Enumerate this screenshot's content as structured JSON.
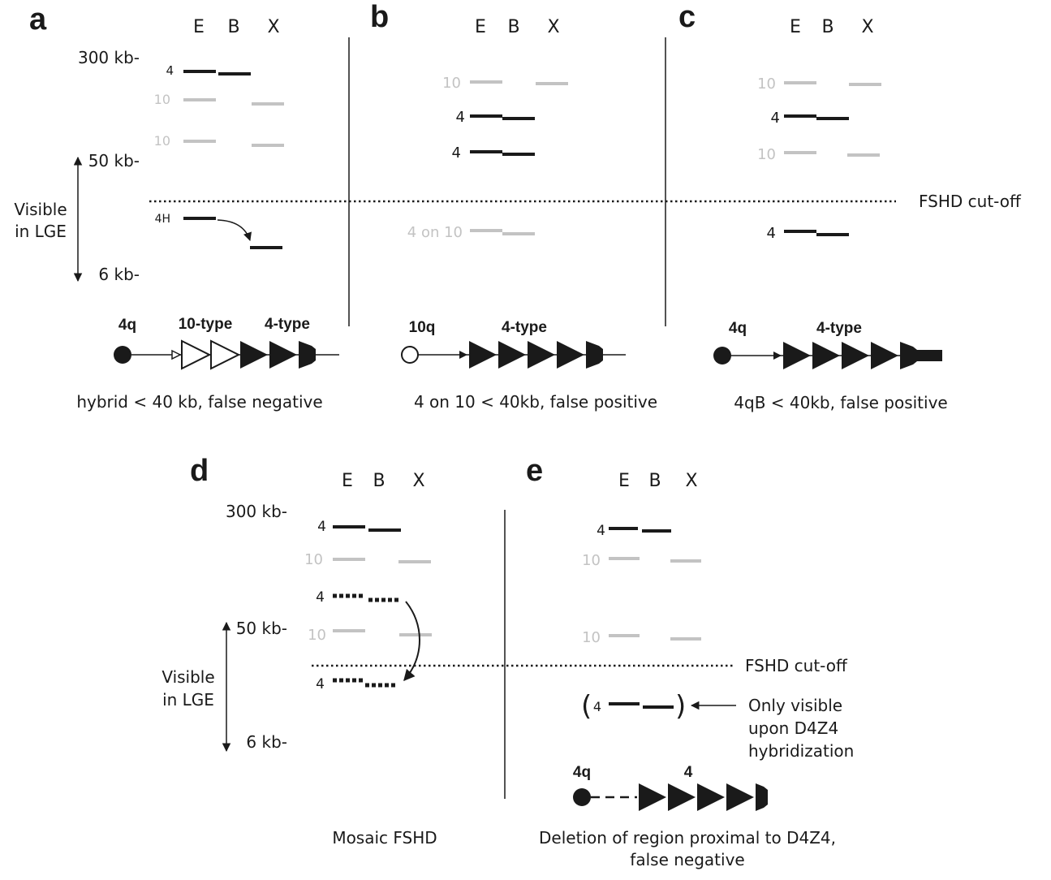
{
  "panels": {
    "a": {
      "letter": "a",
      "lanes": [
        "E",
        "B",
        "X"
      ],
      "size_labels": [
        "300 kb-",
        "50 kb-",
        "6 kb-"
      ],
      "axis_note": [
        "Visible",
        "in LGE"
      ],
      "bands": [
        "4",
        "10",
        "10",
        "4H"
      ],
      "construct": {
        "chromosome": "4q",
        "types": [
          "10-type",
          "4-type"
        ]
      },
      "caption": "hybrid < 40 kb, false negative"
    },
    "b": {
      "letter": "b",
      "lanes": [
        "E",
        "B",
        "X"
      ],
      "bands": [
        "10",
        "4",
        "4",
        "4 on 10"
      ],
      "construct": {
        "chromosome": "10q",
        "types": [
          "4-type"
        ]
      },
      "caption": "4 on 10 < 40kb, false positive"
    },
    "c": {
      "letter": "c",
      "lanes": [
        "E",
        "B",
        "X"
      ],
      "bands": [
        "10",
        "4",
        "10",
        "4"
      ],
      "construct": {
        "chromosome": "4q",
        "types": [
          "4-type"
        ]
      },
      "caption": "4qB < 40kb, false positive"
    },
    "d": {
      "letter": "d",
      "lanes": [
        "E",
        "B",
        "X"
      ],
      "size_labels": [
        "300 kb-",
        "50 kb-",
        "6 kb-"
      ],
      "axis_note": [
        "Visible",
        "in LGE"
      ],
      "bands": [
        "4",
        "10",
        "4",
        "10",
        "4"
      ],
      "caption": "Mosaic FSHD"
    },
    "e": {
      "letter": "e",
      "lanes": [
        "E",
        "B",
        "X"
      ],
      "bands": [
        "4",
        "10",
        "10",
        "4"
      ],
      "paren_open": "(",
      "paren_close": ")",
      "note": [
        "Only visible",
        "upon D4Z4",
        "hybridization"
      ],
      "construct": {
        "chromosome": "4q",
        "types": [
          "4"
        ]
      },
      "caption": [
        "Deletion of region proximal to D4Z4,",
        "false negative"
      ]
    }
  },
  "cutoff_label": "FSHD cut-off",
  "colors": {
    "dark": "#1a1a1a",
    "grey": "#c3c3c3",
    "background": "#ffffff"
  }
}
